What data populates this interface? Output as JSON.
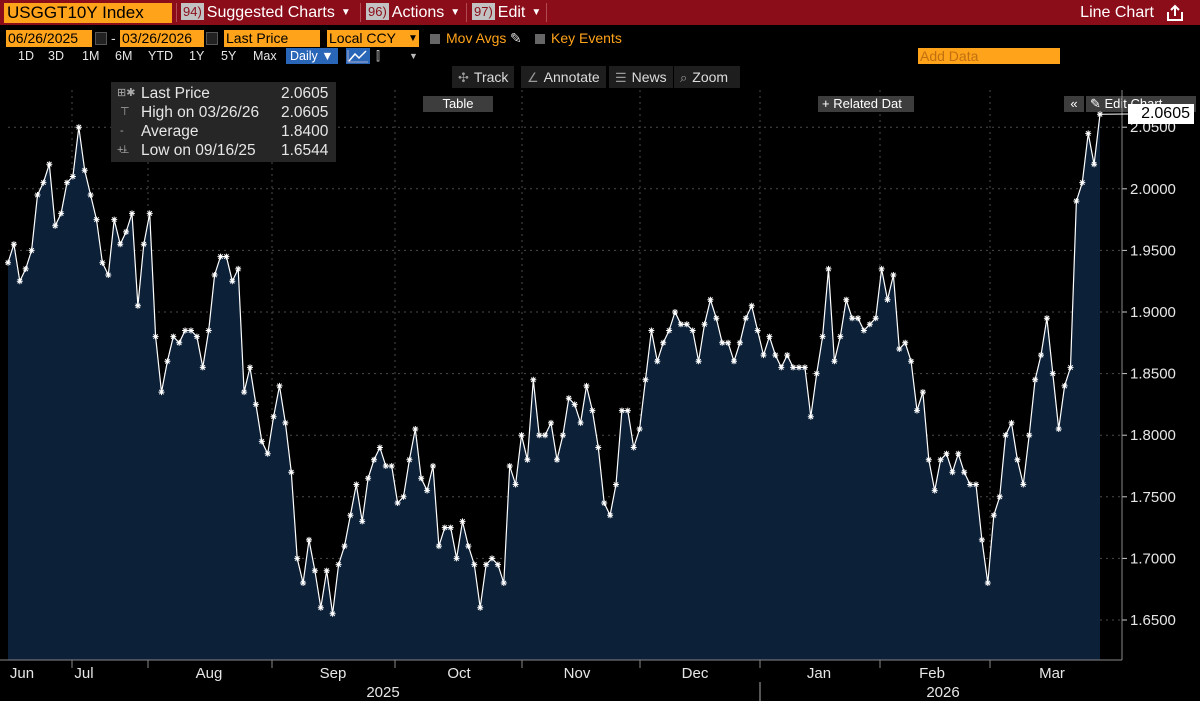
{
  "header": {
    "ticker": "USGGT10Y Index",
    "menu": [
      {
        "num": "94)",
        "label": "Suggested Charts"
      },
      {
        "num": "96)",
        "label": "Actions"
      },
      {
        "num": "97)",
        "label": "Edit"
      }
    ],
    "chart_type": "Line Chart"
  },
  "controls": {
    "start_date": "06/26/2025",
    "date_sep": "-",
    "end_date": "03/26/2026",
    "field": "Last Price",
    "currency": "Local CCY",
    "mov_avgs": "Mov Avgs",
    "key_events": "Key Events",
    "periods": [
      "1D",
      "3D",
      "1M",
      "6M",
      "YTD",
      "1Y",
      "5Y",
      "Max"
    ],
    "frequency": "Daily ▼",
    "table": "Table",
    "related_data": "+ Related Dat",
    "add_data_placeholder": "Add Data",
    "edit_chart": "Edit Chart"
  },
  "tools": [
    "Track",
    "Annotate",
    "News",
    "Zoom"
  ],
  "legend": [
    {
      "label": "Last Price",
      "value": "2.0605"
    },
    {
      "label": "High on 03/26/26",
      "value": "2.0605"
    },
    {
      "label": "Average",
      "value": "1.8400"
    },
    {
      "label": "Low on 09/16/25",
      "value": "1.6544"
    }
  ],
  "last_value_label": "2.0605",
  "colors": {
    "line": "#ffffff",
    "fill": "#0c2038",
    "ticker_bg": "#ffa31a",
    "header_bg": "#8c0d1a",
    "grid": "#4a4a4a"
  },
  "chart_data": {
    "type": "area",
    "title": "USGGT10Y Index",
    "series_name": "Last Price",
    "ylim": [
      1.62,
      2.1
    ],
    "yticks": [
      1.65,
      1.7,
      1.75,
      1.8,
      1.85,
      1.9,
      1.95,
      2.0,
      2.05
    ],
    "ytick_labels": [
      "1.6500",
      "1.7000",
      "1.7500",
      "1.8000",
      "1.8500",
      "1.9000",
      "1.9500",
      "2.0000",
      "2.0500"
    ],
    "months": [
      "Jun",
      "Jul",
      "Aug",
      "Sep",
      "Oct",
      "Nov",
      "Dec",
      "Jan",
      "Feb",
      "Mar"
    ],
    "years": [
      "2025",
      "2026"
    ],
    "values": [
      1.94,
      1.955,
      1.925,
      1.935,
      1.95,
      1.995,
      2.005,
      2.02,
      1.97,
      1.98,
      2.005,
      2.01,
      2.05,
      2.015,
      1.995,
      1.975,
      1.94,
      1.93,
      1.975,
      1.955,
      1.965,
      1.98,
      1.905,
      1.955,
      1.98,
      1.88,
      1.835,
      1.86,
      1.88,
      1.875,
      1.885,
      1.885,
      1.88,
      1.855,
      1.885,
      1.93,
      1.945,
      1.945,
      1.925,
      1.935,
      1.835,
      1.855,
      1.825,
      1.795,
      1.785,
      1.815,
      1.84,
      1.81,
      1.77,
      1.7,
      1.68,
      1.715,
      1.69,
      1.66,
      1.69,
      1.655,
      1.695,
      1.71,
      1.735,
      1.76,
      1.73,
      1.765,
      1.78,
      1.79,
      1.775,
      1.775,
      1.745,
      1.75,
      1.78,
      1.805,
      1.765,
      1.755,
      1.775,
      1.71,
      1.725,
      1.725,
      1.7,
      1.73,
      1.71,
      1.695,
      1.66,
      1.695,
      1.7,
      1.695,
      1.68,
      1.775,
      1.76,
      1.8,
      1.78,
      1.845,
      1.8,
      1.8,
      1.81,
      1.78,
      1.8,
      1.83,
      1.825,
      1.81,
      1.84,
      1.82,
      1.79,
      1.745,
      1.735,
      1.76,
      1.82,
      1.82,
      1.79,
      1.805,
      1.845,
      1.885,
      1.86,
      1.875,
      1.885,
      1.9,
      1.89,
      1.89,
      1.885,
      1.86,
      1.89,
      1.91,
      1.895,
      1.875,
      1.875,
      1.86,
      1.875,
      1.895,
      1.905,
      1.885,
      1.865,
      1.88,
      1.865,
      1.855,
      1.865,
      1.855,
      1.855,
      1.855,
      1.815,
      1.85,
      1.88,
      1.935,
      1.86,
      1.88,
      1.91,
      1.895,
      1.895,
      1.885,
      1.89,
      1.895,
      1.935,
      1.91,
      1.93,
      1.87,
      1.875,
      1.86,
      1.82,
      1.835,
      1.78,
      1.755,
      1.78,
      1.785,
      1.77,
      1.785,
      1.77,
      1.76,
      1.76,
      1.715,
      1.68,
      1.735,
      1.75,
      1.8,
      1.81,
      1.78,
      1.76,
      1.8,
      1.845,
      1.865,
      1.895,
      1.85,
      1.805,
      1.84,
      1.855,
      1.99,
      2.005,
      2.045,
      2.02,
      2.0605
    ]
  }
}
